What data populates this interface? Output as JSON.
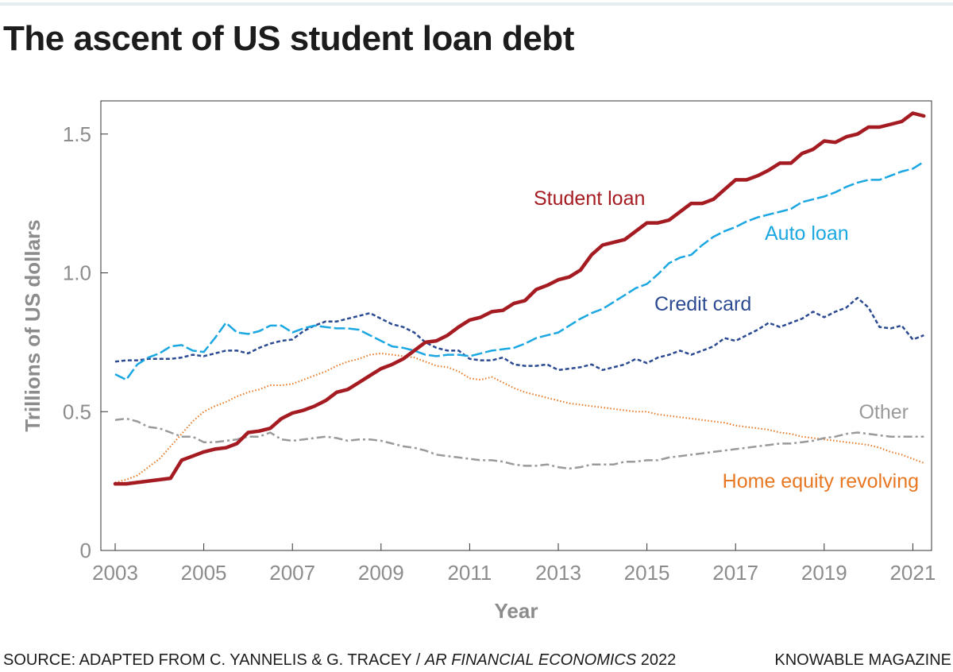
{
  "header": {
    "title": "The ascent of US student loan debt"
  },
  "footer": {
    "source_prefix": "SOURCE: ADAPTED FROM C. YANNELIS & G. TRACEY / ",
    "source_journal": "AR FINANCIAL ECONOMICS",
    "source_year": " 2022",
    "publisher": "KNOWABLE MAGAZINE"
  },
  "chart_data": {
    "type": "line",
    "xlabel": "Year",
    "ylabel": "Trillions of US dollars",
    "xlim": [
      2003,
      2021.5
    ],
    "ylim": [
      0,
      1.62
    ],
    "x_ticks": [
      2003,
      2005,
      2007,
      2009,
      2011,
      2013,
      2015,
      2017,
      2019,
      2021
    ],
    "x_tick_labels": [
      "2003",
      "2005",
      "2007",
      "2009",
      "2011",
      "2013",
      "2015",
      "2017",
      "2019",
      "2021"
    ],
    "y_ticks": [
      0,
      0.5,
      1.0,
      1.5
    ],
    "y_tick_labels": [
      "0",
      "0.5",
      "1.0",
      "1.5"
    ],
    "grid": false,
    "legend": "direct labels at line ends",
    "series": [
      {
        "name": "Student loan",
        "color": "#a51b22",
        "style": "solid",
        "x": [
          2003,
          2003.25,
          2003.5,
          2003.75,
          2004,
          2004.25,
          2004.5,
          2004.75,
          2005,
          2005.25,
          2005.5,
          2005.75,
          2006,
          2006.25,
          2006.5,
          2006.75,
          2007,
          2007.25,
          2007.5,
          2007.75,
          2008,
          2008.25,
          2008.5,
          2008.75,
          2009,
          2009.25,
          2009.5,
          2009.75,
          2010,
          2010.25,
          2010.5,
          2010.75,
          2011,
          2011.25,
          2011.5,
          2011.75,
          2012,
          2012.25,
          2012.5,
          2012.75,
          2013,
          2013.25,
          2013.5,
          2013.75,
          2014,
          2014.25,
          2014.5,
          2014.75,
          2015,
          2015.25,
          2015.5,
          2015.75,
          2016,
          2016.25,
          2016.5,
          2016.75,
          2017,
          2017.25,
          2017.5,
          2017.75,
          2018,
          2018.25,
          2018.5,
          2018.75,
          2019,
          2019.25,
          2019.5,
          2019.75,
          2020,
          2020.25,
          2020.5,
          2020.75,
          2021,
          2021.25
        ],
        "values": [
          0.24,
          0.24,
          0.245,
          0.25,
          0.255,
          0.26,
          0.325,
          0.34,
          0.355,
          0.365,
          0.37,
          0.385,
          0.425,
          0.43,
          0.44,
          0.475,
          0.495,
          0.505,
          0.52,
          0.54,
          0.57,
          0.58,
          0.605,
          0.63,
          0.655,
          0.67,
          0.69,
          0.72,
          0.75,
          0.755,
          0.775,
          0.805,
          0.83,
          0.84,
          0.86,
          0.865,
          0.89,
          0.9,
          0.94,
          0.955,
          0.975,
          0.985,
          1.01,
          1.065,
          1.1,
          1.11,
          1.12,
          1.15,
          1.18,
          1.18,
          1.19,
          1.22,
          1.25,
          1.25,
          1.265,
          1.3,
          1.335,
          1.335,
          1.35,
          1.37,
          1.395,
          1.395,
          1.43,
          1.445,
          1.475,
          1.47,
          1.49,
          1.5,
          1.525,
          1.525,
          1.535,
          1.545,
          1.575,
          1.565
        ]
      },
      {
        "name": "Auto loan",
        "color": "#1ba7e1",
        "style": "long-dash",
        "x": [
          2003,
          2003.25,
          2003.5,
          2003.75,
          2004,
          2004.25,
          2004.5,
          2004.75,
          2005,
          2005.25,
          2005.5,
          2005.75,
          2006,
          2006.25,
          2006.5,
          2006.75,
          2007,
          2007.25,
          2007.5,
          2007.75,
          2008,
          2008.25,
          2008.5,
          2008.75,
          2009,
          2009.25,
          2009.5,
          2009.75,
          2010,
          2010.25,
          2010.5,
          2010.75,
          2011,
          2011.25,
          2011.5,
          2011.75,
          2012,
          2012.25,
          2012.5,
          2012.75,
          2013,
          2013.25,
          2013.5,
          2013.75,
          2014,
          2014.25,
          2014.5,
          2014.75,
          2015,
          2015.25,
          2015.5,
          2015.75,
          2016,
          2016.25,
          2016.5,
          2016.75,
          2017,
          2017.25,
          2017.5,
          2017.75,
          2018,
          2018.25,
          2018.5,
          2018.75,
          2019,
          2019.25,
          2019.5,
          2019.75,
          2020,
          2020.25,
          2020.5,
          2020.75,
          2021,
          2021.25
        ],
        "values": [
          0.635,
          0.615,
          0.67,
          0.695,
          0.71,
          0.735,
          0.74,
          0.72,
          0.715,
          0.765,
          0.82,
          0.785,
          0.78,
          0.79,
          0.81,
          0.81,
          0.785,
          0.8,
          0.81,
          0.805,
          0.8,
          0.8,
          0.795,
          0.775,
          0.755,
          0.735,
          0.73,
          0.72,
          0.705,
          0.7,
          0.705,
          0.705,
          0.7,
          0.71,
          0.72,
          0.725,
          0.73,
          0.745,
          0.765,
          0.775,
          0.785,
          0.81,
          0.835,
          0.855,
          0.87,
          0.895,
          0.92,
          0.945,
          0.96,
          0.995,
          1.035,
          1.055,
          1.065,
          1.1,
          1.13,
          1.15,
          1.165,
          1.185,
          1.2,
          1.21,
          1.22,
          1.23,
          1.255,
          1.265,
          1.275,
          1.29,
          1.31,
          1.325,
          1.335,
          1.335,
          1.35,
          1.365,
          1.375,
          1.4
        ]
      },
      {
        "name": "Credit card",
        "color": "#2b4a91",
        "style": "short-dash",
        "x": [
          2003,
          2003.25,
          2003.5,
          2003.75,
          2004,
          2004.25,
          2004.5,
          2004.75,
          2005,
          2005.25,
          2005.5,
          2005.75,
          2006,
          2006.25,
          2006.5,
          2006.75,
          2007,
          2007.25,
          2007.5,
          2007.75,
          2008,
          2008.25,
          2008.5,
          2008.75,
          2009,
          2009.25,
          2009.5,
          2009.75,
          2010,
          2010.25,
          2010.5,
          2010.75,
          2011,
          2011.25,
          2011.5,
          2011.75,
          2012,
          2012.25,
          2012.5,
          2012.75,
          2013,
          2013.25,
          2013.5,
          2013.75,
          2014,
          2014.25,
          2014.5,
          2014.75,
          2015,
          2015.25,
          2015.5,
          2015.75,
          2016,
          2016.25,
          2016.5,
          2016.75,
          2017,
          2017.25,
          2017.5,
          2017.75,
          2018,
          2018.25,
          2018.5,
          2018.75,
          2019,
          2019.25,
          2019.5,
          2019.75,
          2020,
          2020.25,
          2020.5,
          2020.75,
          2021,
          2021.25
        ],
        "values": [
          0.68,
          0.685,
          0.685,
          0.69,
          0.69,
          0.69,
          0.695,
          0.705,
          0.7,
          0.71,
          0.72,
          0.72,
          0.71,
          0.73,
          0.745,
          0.755,
          0.76,
          0.79,
          0.81,
          0.825,
          0.825,
          0.835,
          0.845,
          0.855,
          0.835,
          0.815,
          0.805,
          0.785,
          0.75,
          0.73,
          0.72,
          0.72,
          0.69,
          0.685,
          0.685,
          0.695,
          0.67,
          0.665,
          0.665,
          0.67,
          0.65,
          0.655,
          0.66,
          0.67,
          0.65,
          0.66,
          0.67,
          0.69,
          0.675,
          0.695,
          0.705,
          0.72,
          0.705,
          0.72,
          0.735,
          0.765,
          0.755,
          0.775,
          0.795,
          0.82,
          0.805,
          0.82,
          0.835,
          0.86,
          0.84,
          0.86,
          0.875,
          0.91,
          0.875,
          0.805,
          0.8,
          0.81,
          0.76,
          0.775
        ]
      },
      {
        "name": "Other",
        "color": "#9a9a9a",
        "style": "dash-dot",
        "x": [
          2003,
          2003.25,
          2003.5,
          2003.75,
          2004,
          2004.25,
          2004.5,
          2004.75,
          2005,
          2005.25,
          2005.5,
          2005.75,
          2006,
          2006.25,
          2006.5,
          2006.75,
          2007,
          2007.25,
          2007.5,
          2007.75,
          2008,
          2008.25,
          2008.5,
          2008.75,
          2009,
          2009.25,
          2009.5,
          2009.75,
          2010,
          2010.25,
          2010.5,
          2010.75,
          2011,
          2011.25,
          2011.5,
          2011.75,
          2012,
          2012.25,
          2012.5,
          2012.75,
          2013,
          2013.25,
          2013.5,
          2013.75,
          2014,
          2014.25,
          2014.5,
          2014.75,
          2015,
          2015.25,
          2015.5,
          2015.75,
          2016,
          2016.25,
          2016.5,
          2016.75,
          2017,
          2017.25,
          2017.5,
          2017.75,
          2018,
          2018.25,
          2018.5,
          2018.75,
          2019,
          2019.25,
          2019.5,
          2019.75,
          2020,
          2020.25,
          2020.5,
          2020.75,
          2021,
          2021.25
        ],
        "values": [
          0.47,
          0.475,
          0.465,
          0.445,
          0.44,
          0.425,
          0.41,
          0.41,
          0.39,
          0.39,
          0.395,
          0.4,
          0.41,
          0.41,
          0.425,
          0.4,
          0.395,
          0.4,
          0.405,
          0.41,
          0.405,
          0.395,
          0.4,
          0.4,
          0.395,
          0.385,
          0.375,
          0.37,
          0.36,
          0.345,
          0.34,
          0.335,
          0.33,
          0.325,
          0.325,
          0.32,
          0.31,
          0.305,
          0.305,
          0.31,
          0.3,
          0.295,
          0.3,
          0.31,
          0.31,
          0.31,
          0.32,
          0.32,
          0.325,
          0.325,
          0.335,
          0.34,
          0.345,
          0.35,
          0.355,
          0.36,
          0.365,
          0.37,
          0.375,
          0.38,
          0.385,
          0.385,
          0.39,
          0.395,
          0.405,
          0.41,
          0.42,
          0.425,
          0.42,
          0.415,
          0.41,
          0.41,
          0.41,
          0.41
        ]
      },
      {
        "name": "Home equity revolving",
        "color": "#e87722",
        "style": "dotted",
        "x": [
          2003,
          2003.25,
          2003.5,
          2003.75,
          2004,
          2004.25,
          2004.5,
          2004.75,
          2005,
          2005.25,
          2005.5,
          2005.75,
          2006,
          2006.25,
          2006.5,
          2006.75,
          2007,
          2007.25,
          2007.5,
          2007.75,
          2008,
          2008.25,
          2008.5,
          2008.75,
          2009,
          2009.25,
          2009.5,
          2009.75,
          2010,
          2010.25,
          2010.5,
          2010.75,
          2011,
          2011.25,
          2011.5,
          2011.75,
          2012,
          2012.25,
          2012.5,
          2012.75,
          2013,
          2013.25,
          2013.5,
          2013.75,
          2014,
          2014.25,
          2014.5,
          2014.75,
          2015,
          2015.25,
          2015.5,
          2015.75,
          2016,
          2016.25,
          2016.5,
          2016.75,
          2017,
          2017.25,
          2017.5,
          2017.75,
          2018,
          2018.25,
          2018.5,
          2018.75,
          2019,
          2019.25,
          2019.5,
          2019.75,
          2020,
          2020.25,
          2020.5,
          2020.75,
          2021,
          2021.25
        ],
        "values": [
          0.245,
          0.255,
          0.27,
          0.3,
          0.33,
          0.375,
          0.42,
          0.465,
          0.5,
          0.52,
          0.535,
          0.555,
          0.57,
          0.58,
          0.595,
          0.595,
          0.6,
          0.615,
          0.63,
          0.645,
          0.665,
          0.68,
          0.69,
          0.705,
          0.71,
          0.705,
          0.7,
          0.695,
          0.68,
          0.665,
          0.66,
          0.645,
          0.62,
          0.615,
          0.625,
          0.605,
          0.585,
          0.57,
          0.56,
          0.55,
          0.54,
          0.53,
          0.525,
          0.52,
          0.515,
          0.51,
          0.505,
          0.5,
          0.5,
          0.49,
          0.485,
          0.48,
          0.475,
          0.47,
          0.465,
          0.46,
          0.45,
          0.445,
          0.44,
          0.435,
          0.425,
          0.42,
          0.41,
          0.405,
          0.4,
          0.395,
          0.39,
          0.385,
          0.38,
          0.37,
          0.355,
          0.345,
          0.33,
          0.315
        ]
      }
    ],
    "annotations": [
      {
        "text": "Student loan",
        "series": "Student loan",
        "color": "#a51b22"
      },
      {
        "text": "Auto loan",
        "series": "Auto loan",
        "color": "#1ba7e1"
      },
      {
        "text": "Credit card",
        "series": "Credit card",
        "color": "#2b4a91"
      },
      {
        "text": "Other",
        "series": "Other",
        "color": "#9a9a9a"
      },
      {
        "text": "Home equity revolving",
        "series": "Home equity revolving",
        "color": "#e87722"
      }
    ]
  }
}
